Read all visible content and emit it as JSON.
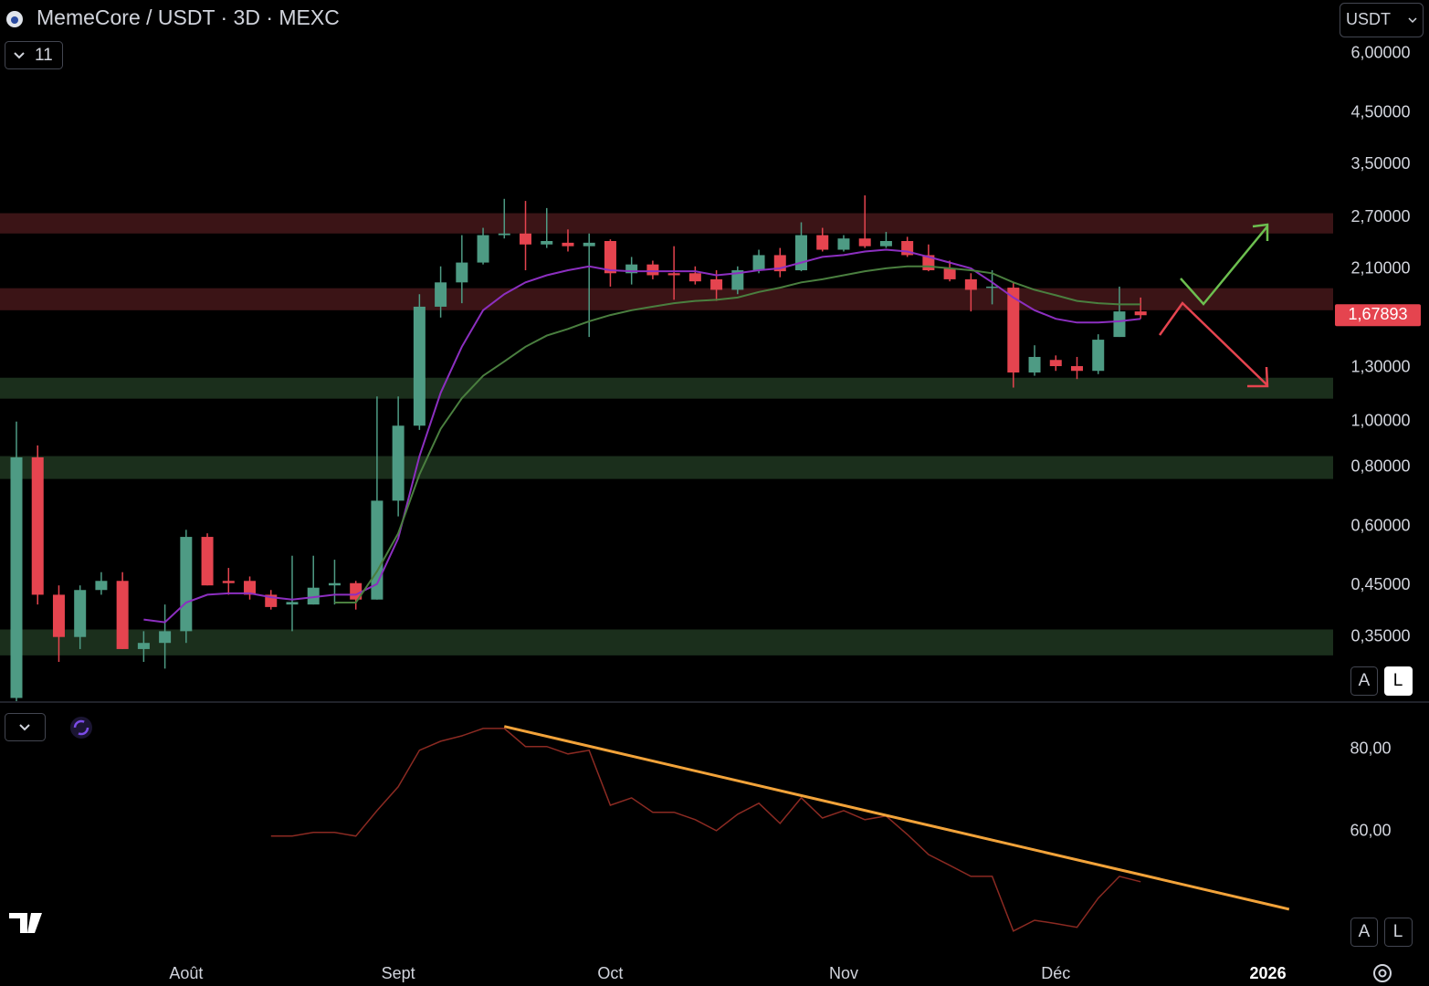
{
  "chart_data": {
    "type": "candlestick",
    "title": "MemeCore / USDT · 3D · MEXC",
    "indicator_count": "11",
    "currency": "USDT",
    "scale_buttons": [
      "A",
      "L"
    ],
    "up_color": "#4e9b84",
    "down_color": "#e5444f",
    "log_scale": true,
    "ylim": [
      0.256,
      7.8
    ],
    "yticks": [
      {
        "value": 6,
        "label": "6,00000"
      },
      {
        "value": 4.5,
        "label": "4,50000"
      },
      {
        "value": 3.5,
        "label": "3,50000"
      },
      {
        "value": 2.7,
        "label": "2,70000"
      },
      {
        "value": 2.1,
        "label": "2,10000"
      },
      {
        "value": 1.3,
        "label": "1,30000"
      },
      {
        "value": 1,
        "label": "1,00000"
      },
      {
        "value": 0.8,
        "label": "0,80000"
      },
      {
        "value": 0.6,
        "label": "0,60000"
      },
      {
        "value": 0.45,
        "label": "0,45000"
      },
      {
        "value": 0.35,
        "label": "0,35000"
      }
    ],
    "xticks": [
      {
        "value": 8,
        "label": "Août"
      },
      {
        "value": 18,
        "label": "Sept"
      },
      {
        "value": 28,
        "label": "Oct"
      },
      {
        "value": 39,
        "label": "Nov"
      },
      {
        "value": 49,
        "label": "Déc"
      },
      {
        "value": 59,
        "label": "2026",
        "bold": true
      }
    ],
    "last_price": {
      "value": 1.67893,
      "label": "1,67893"
    },
    "open": [
      0.26,
      0.84,
      0.43,
      0.35,
      0.44,
      0.46,
      0.33,
      0.34,
      0.36,
      0.57,
      0.46,
      0.46,
      0.43,
      0.41,
      0.41,
      0.45,
      0.455,
      0.42,
      0.68,
      0.98,
      1.75,
      1.97,
      2.17,
      2.48,
      2.5,
      2.37,
      2.39,
      2.35,
      2.41,
      2.06,
      2.15,
      2.06,
      2.06,
      2.0,
      1.9,
      2.09,
      2.25,
      2.09,
      2.48,
      2.31,
      2.44,
      2.35,
      2.41,
      2.25,
      2.11,
      2.0,
      1.92,
      1.92,
      1.27,
      1.35,
      1.31,
      1.28,
      1.51,
      1.71
    ],
    "high": [
      1.0,
      0.89,
      0.45,
      0.45,
      0.48,
      0.48,
      0.36,
      0.41,
      0.59,
      0.58,
      0.49,
      0.47,
      0.44,
      0.52,
      0.52,
      0.51,
      0.46,
      1.13,
      1.13,
      1.86,
      2.13,
      2.48,
      2.57,
      2.96,
      2.93,
      2.83,
      2.55,
      2.5,
      2.43,
      2.23,
      2.19,
      2.35,
      2.13,
      2.09,
      2.13,
      2.31,
      2.33,
      2.64,
      2.57,
      2.48,
      3.01,
      2.52,
      2.46,
      2.37,
      2.19,
      2.06,
      2.09,
      1.97,
      1.45,
      1.38,
      1.37,
      1.53,
      1.93,
      1.83
    ],
    "low": [
      0.25,
      0.41,
      0.31,
      0.33,
      0.43,
      0.33,
      0.31,
      0.3,
      0.34,
      0.45,
      0.43,
      0.42,
      0.4,
      0.36,
      0.41,
      0.41,
      0.4,
      0.42,
      0.63,
      0.96,
      1.66,
      1.78,
      2.15,
      2.44,
      2.09,
      2.33,
      2.29,
      1.51,
      1.93,
      1.95,
      2.0,
      1.81,
      1.95,
      1.8,
      1.86,
      2.06,
      2.02,
      2.08,
      2.29,
      2.29,
      2.33,
      2.33,
      2.23,
      2.08,
      1.98,
      1.71,
      1.77,
      1.18,
      1.25,
      1.28,
      1.23,
      1.26,
      1.51,
      1.65
    ],
    "close": [
      0.84,
      0.43,
      0.35,
      0.44,
      0.46,
      0.33,
      0.34,
      0.36,
      0.57,
      0.45,
      0.455,
      0.43,
      0.405,
      0.415,
      0.445,
      0.455,
      0.42,
      0.68,
      0.98,
      1.75,
      1.97,
      2.17,
      2.48,
      2.5,
      2.37,
      2.41,
      2.35,
      2.39,
      2.06,
      2.15,
      2.04,
      2.04,
      1.98,
      1.9,
      2.09,
      2.25,
      2.08,
      2.48,
      2.31,
      2.44,
      2.35,
      2.41,
      2.25,
      2.09,
      2.0,
      1.9,
      1.93,
      1.27,
      1.37,
      1.31,
      1.28,
      1.49,
      1.71,
      1.67893
    ],
    "moving_averages": [
      {
        "color": "#8c2fc0",
        "values": [
          null,
          null,
          null,
          null,
          null,
          null,
          0.381,
          0.376,
          0.414,
          0.43,
          0.433,
          0.433,
          0.425,
          0.42,
          0.425,
          0.43,
          0.43,
          0.453,
          0.566,
          0.845,
          1.15,
          1.44,
          1.72,
          1.86,
          1.97,
          2.04,
          2.09,
          2.13,
          2.09,
          2.08,
          2.08,
          2.08,
          2.08,
          2.04,
          2.06,
          2.09,
          2.11,
          2.17,
          2.23,
          2.25,
          2.29,
          2.31,
          2.29,
          2.23,
          2.17,
          2.11,
          1.97,
          1.83,
          1.72,
          1.65,
          1.62,
          1.62,
          1.63,
          1.65
        ]
      },
      {
        "color": "#4a7f3f",
        "values": [
          null,
          null,
          null,
          null,
          null,
          null,
          null,
          null,
          null,
          null,
          null,
          null,
          null,
          null,
          null,
          0.414,
          0.414,
          0.482,
          0.58,
          0.773,
          0.965,
          1.12,
          1.25,
          1.34,
          1.44,
          1.52,
          1.57,
          1.63,
          1.68,
          1.72,
          1.75,
          1.78,
          1.8,
          1.81,
          1.83,
          1.88,
          1.92,
          1.97,
          2.0,
          2.04,
          2.08,
          2.11,
          2.13,
          2.13,
          2.11,
          2.09,
          2.06,
          1.97,
          1.9,
          1.85,
          1.8,
          1.78,
          1.77,
          1.77
        ]
      }
    ],
    "zones": [
      {
        "range": [
          2.5,
          2.76
        ],
        "color": "#3b1416"
      },
      {
        "range": [
          1.72,
          1.915
        ],
        "color": "#3b1416"
      },
      {
        "range": [
          1.118,
          1.238
        ],
        "color": "#1b2f1c"
      },
      {
        "range": [
          0.756,
          0.845
        ],
        "color": "#1b2f1c"
      },
      {
        "range": [
          0.32,
          0.363
        ],
        "color": "#1b2f1c"
      }
    ],
    "rsi": {
      "type": "line",
      "color": "#8b2a22",
      "ylim": [
        31.3,
        91.3
      ],
      "yticks": [
        {
          "value": 80,
          "label": "80,00"
        },
        {
          "value": 60,
          "label": "60,00"
        }
      ],
      "values": [
        null,
        null,
        null,
        null,
        null,
        null,
        null,
        null,
        null,
        null,
        null,
        null,
        58.9,
        58.9,
        59.8,
        59.8,
        58.9,
        65.1,
        70.9,
        79.8,
        82.0,
        83.3,
        85.1,
        85.1,
        80.7,
        80.7,
        78.9,
        79.8,
        66.4,
        68.2,
        64.7,
        64.7,
        62.9,
        60.2,
        64.2,
        66.9,
        62.0,
        68.2,
        63.3,
        65.1,
        62.9,
        63.8,
        59.3,
        54.4,
        51.8,
        49.1,
        49.1,
        35.8,
        38.4,
        37.6,
        36.7,
        43.8,
        49.1,
        47.8
      ],
      "trendline": {
        "color": "#f2a33a",
        "x": [
          23,
          60
        ],
        "values": [
          85.6,
          41.1
        ]
      }
    }
  }
}
